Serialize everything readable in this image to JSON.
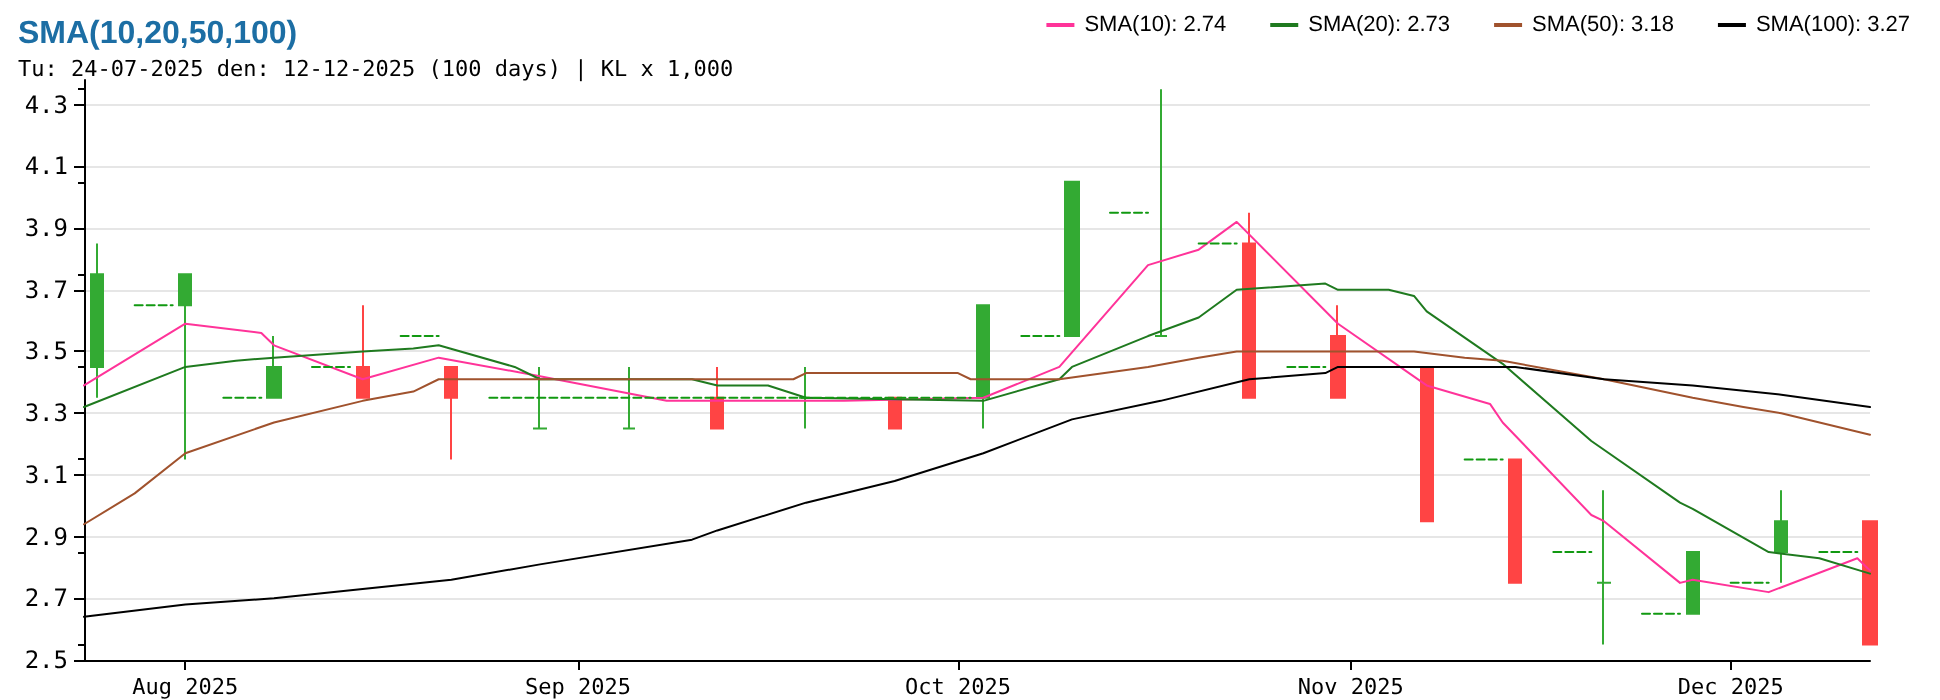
{
  "chart_data": {
    "type": "candlestick",
    "title": "SMA(10,20,50,100)",
    "subtitle": "Tu: 24-07-2025 den: 12-12-2025 (100 days) | KL x 1,000",
    "x": [
      "2025-07-25",
      "2025-08-01",
      "2025-08-08",
      "2025-08-15",
      "2025-08-22",
      "2025-08-29",
      "2025-09-05",
      "2025-09-12",
      "2025-09-19",
      "2025-09-26",
      "2025-10-03",
      "2025-10-10",
      "2025-10-17",
      "2025-10-24",
      "2025-10-31",
      "2025-11-07",
      "2025-11-14",
      "2025-11-21",
      "2025-11-28",
      "2025-12-05",
      "2025-12-12"
    ],
    "ohlc": [
      [
        3.45,
        3.85,
        3.35,
        3.75
      ],
      [
        3.65,
        3.75,
        3.15,
        3.75
      ],
      [
        3.35,
        3.55,
        3.35,
        3.45
      ],
      [
        3.45,
        3.65,
        3.35,
        3.35
      ],
      [
        3.45,
        3.45,
        3.15,
        3.35
      ],
      [
        3.25,
        3.45,
        3.25,
        3.25
      ],
      [
        3.25,
        3.45,
        3.25,
        3.25
      ],
      [
        3.35,
        3.45,
        3.25,
        3.25
      ],
      [
        3.35,
        3.45,
        3.25,
        3.35
      ],
      [
        3.35,
        3.35,
        3.25,
        3.25
      ],
      [
        3.35,
        3.65,
        3.25,
        3.65
      ],
      [
        3.55,
        4.05,
        3.55,
        4.05
      ],
      [
        3.55,
        4.35,
        3.55,
        3.55
      ],
      [
        3.85,
        3.95,
        3.35,
        3.35
      ],
      [
        3.55,
        3.65,
        3.35,
        3.35
      ],
      [
        3.45,
        3.45,
        2.95,
        2.95
      ],
      [
        3.15,
        3.15,
        2.75,
        2.75
      ],
      [
        2.75,
        3.05,
        2.55,
        2.75
      ],
      [
        2.65,
        2.85,
        2.65,
        2.85
      ],
      [
        2.85,
        3.05,
        2.75,
        2.95
      ],
      [
        2.95,
        2.95,
        2.55,
        2.55
      ]
    ],
    "colors": [
      "#33aa33",
      "#33aa33",
      "#33aa33",
      "#ff4444",
      "#ff4444",
      "#33aa33",
      "#33aa33",
      "#ff4444",
      "#33aa33",
      "#ff4444",
      "#33aa33",
      "#33aa33",
      "#33aa33",
      "#ff4444",
      "#ff4444",
      "#ff4444",
      "#ff4444",
      "#33aa33",
      "#33aa33",
      "#33aa33",
      "#ff4444"
    ],
    "series": [
      {
        "type": "line",
        "name": "SMA(10): 2.74",
        "color": "#ff3399",
        "x": [
          "2025-07-24",
          "2025-08-01",
          "2025-08-07",
          "2025-08-08",
          "2025-08-15",
          "2025-08-21",
          "2025-08-29",
          "2025-09-08",
          "2025-09-22",
          "2025-10-03",
          "2025-10-09",
          "2025-10-16",
          "2025-10-20",
          "2025-10-23",
          "2025-10-31",
          "2025-11-07",
          "2025-11-12",
          "2025-11-13",
          "2025-11-20",
          "2025-11-21",
          "2025-11-27",
          "2025-11-28",
          "2025-12-04",
          "2025-12-11",
          "2025-12-12"
        ],
        "values": [
          3.39,
          3.59,
          3.56,
          3.52,
          3.41,
          3.48,
          3.42,
          3.34,
          3.34,
          3.35,
          3.45,
          3.78,
          3.83,
          3.92,
          3.59,
          3.39,
          3.33,
          3.27,
          2.97,
          2.95,
          2.75,
          2.76,
          2.72,
          2.83,
          2.79
        ]
      },
      {
        "type": "line",
        "name": "SMA(20): 2.73",
        "color": "#1f7a1f",
        "x": [
          "2025-07-24",
          "2025-08-01",
          "2025-08-05",
          "2025-08-08",
          "2025-08-15",
          "2025-08-19",
          "2025-08-21",
          "2025-08-27",
          "2025-08-29",
          "2025-09-10",
          "2025-09-12",
          "2025-09-16",
          "2025-09-19",
          "2025-10-03",
          "2025-10-09",
          "2025-10-10",
          "2025-10-16",
          "2025-10-20",
          "2025-10-23",
          "2025-10-30",
          "2025-10-31",
          "2025-11-04",
          "2025-11-06",
          "2025-11-07",
          "2025-11-13",
          "2025-11-20",
          "2025-11-27",
          "2025-11-28",
          "2025-12-04",
          "2025-12-08",
          "2025-12-12"
        ],
        "values": [
          3.32,
          3.45,
          3.47,
          3.48,
          3.5,
          3.51,
          3.52,
          3.45,
          3.41,
          3.41,
          3.39,
          3.39,
          3.35,
          3.34,
          3.41,
          3.45,
          3.55,
          3.61,
          3.7,
          3.72,
          3.7,
          3.7,
          3.68,
          3.63,
          3.46,
          3.21,
          3.01,
          2.99,
          2.85,
          2.83,
          2.78
        ]
      },
      {
        "type": "line",
        "name": "SMA(50): 3.18",
        "color": "#a0522d",
        "x": [
          "2025-07-24",
          "2025-07-28",
          "2025-08-01",
          "2025-08-08",
          "2025-08-15",
          "2025-08-19",
          "2025-08-21",
          "2025-08-29",
          "2025-09-10",
          "2025-09-18",
          "2025-09-19",
          "2025-10-01",
          "2025-10-02",
          "2025-10-09",
          "2025-10-16",
          "2025-10-20",
          "2025-10-23",
          "2025-10-30",
          "2025-11-06",
          "2025-11-10",
          "2025-11-13",
          "2025-11-21",
          "2025-11-28",
          "2025-12-02",
          "2025-12-05",
          "2025-12-12"
        ],
        "values": [
          2.94,
          3.04,
          3.17,
          3.27,
          3.34,
          3.37,
          3.41,
          3.41,
          3.41,
          3.41,
          3.43,
          3.43,
          3.41,
          3.41,
          3.45,
          3.48,
          3.5,
          3.5,
          3.5,
          3.48,
          3.47,
          3.41,
          3.35,
          3.32,
          3.3,
          3.23
        ]
      },
      {
        "type": "line",
        "name": "SMA(100): 3.27",
        "color": "#000000",
        "x": [
          "2025-07-24",
          "2025-08-01",
          "2025-08-08",
          "2025-08-15",
          "2025-08-22",
          "2025-08-29",
          "2025-09-10",
          "2025-09-12",
          "2025-09-19",
          "2025-09-26",
          "2025-10-03",
          "2025-10-10",
          "2025-10-17",
          "2025-10-24",
          "2025-10-30",
          "2025-10-31",
          "2025-11-07",
          "2025-11-14",
          "2025-11-21",
          "2025-11-28",
          "2025-12-05",
          "2025-12-12"
        ],
        "values": [
          2.64,
          2.68,
          2.7,
          2.73,
          2.76,
          2.81,
          2.89,
          2.92,
          3.01,
          3.08,
          3.17,
          3.28,
          3.34,
          3.41,
          3.43,
          3.45,
          3.45,
          3.45,
          3.41,
          3.39,
          3.36,
          3.32
        ]
      },
      {
        "type": "line",
        "color": "#119911",
        "line_style": "dashed",
        "x": [
          "2025-07-28",
          "2025-07-31",
          "2025-08-01",
          "2025-08-04",
          "2025-08-07",
          "2025-08-08",
          "2025-08-11",
          "2025-08-14",
          "2025-08-15",
          "2025-08-18",
          "2025-08-21",
          "2025-08-22",
          "2025-08-25",
          "2025-10-02",
          "2025-10-03",
          "2025-10-06",
          "2025-10-09",
          "2025-10-10",
          "2025-10-13",
          "2025-10-16",
          "2025-10-17",
          "2025-10-20",
          "2025-10-23",
          "2025-10-24",
          "2025-10-27",
          "2025-10-30",
          "2025-10-31",
          "2025-11-10",
          "2025-11-13",
          "2025-11-14",
          "2025-11-17",
          "2025-11-20",
          "2025-11-21",
          "2025-11-24",
          "2025-11-27",
          "2025-11-28",
          "2025-12-01",
          "2025-12-04",
          "2025-12-05",
          "2025-12-08",
          "2025-12-11"
        ],
        "values": [
          3.65,
          3.65,
          null,
          3.35,
          3.35,
          null,
          3.45,
          3.45,
          null,
          3.55,
          3.55,
          null,
          3.35,
          3.35,
          null,
          3.55,
          3.55,
          null,
          3.95,
          3.95,
          null,
          3.85,
          3.85,
          null,
          3.45,
          3.45,
          null,
          3.15,
          3.15,
          null,
          2.85,
          2.85,
          null,
          2.65,
          2.65,
          null,
          2.75,
          2.75,
          null,
          2.85,
          2.85
        ]
      }
    ],
    "xlim": [
      "2025-07-24",
      "2025-12-12"
    ],
    "xticks": [
      {
        "value": "2025-08-01",
        "label": "Aug 2025"
      },
      {
        "value": "2025-09-01",
        "label": "Sep 2025"
      },
      {
        "value": "2025-10-01",
        "label": "Oct 2025"
      },
      {
        "value": "2025-11-01",
        "label": "Nov 2025"
      },
      {
        "value": "2025-12-01",
        "label": "Dec 2025"
      }
    ],
    "ylim": [
      2.5,
      4.38
    ],
    "yticks": [
      2.5,
      2.7,
      2.9,
      3.1,
      3.3,
      3.5,
      3.7,
      3.9,
      4.1,
      4.3
    ],
    "grid": "y",
    "legend": "top right",
    "marker": "none",
    "line_style": "solid"
  }
}
